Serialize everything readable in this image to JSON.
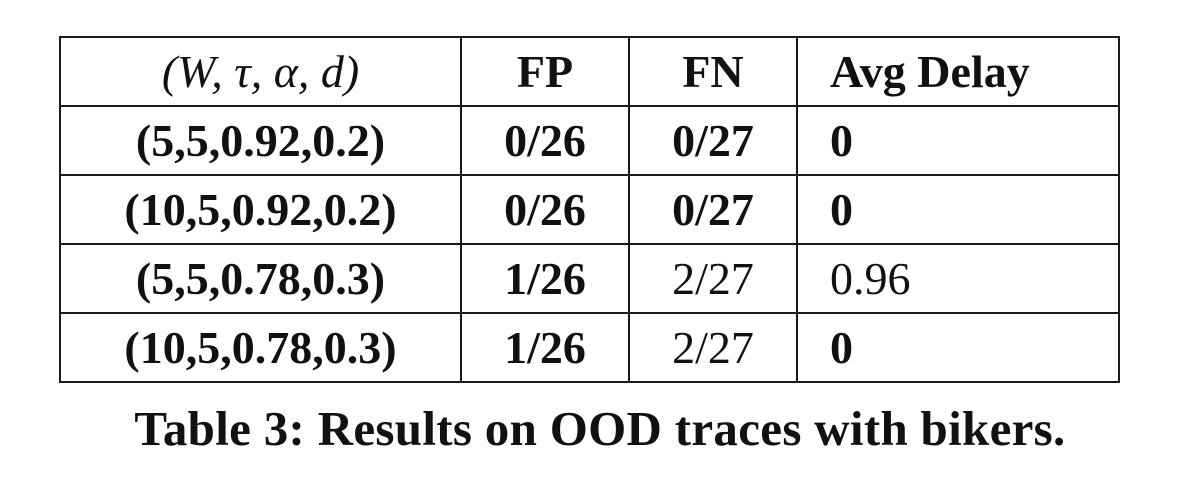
{
  "table": {
    "headers": [
      "(W, τ, α, d)",
      "FP",
      "FN",
      "Avg Delay"
    ],
    "rows": [
      {
        "params": "(5,5,0.92,0.2)",
        "fp": "0/26",
        "fn": "0/27",
        "avg_delay": "0",
        "bold": [
          true,
          true,
          true,
          true
        ]
      },
      {
        "params": "(10,5,0.92,0.2)",
        "fp": "0/26",
        "fn": "0/27",
        "avg_delay": "0",
        "bold": [
          true,
          true,
          true,
          true
        ]
      },
      {
        "params": "(5,5,0.78,0.3)",
        "fp": "1/26",
        "fn": "2/27",
        "avg_delay": "0.96",
        "bold": [
          true,
          true,
          false,
          false
        ]
      },
      {
        "params": "(10,5,0.78,0.3)",
        "fp": "1/26",
        "fn": "2/27",
        "avg_delay": "0",
        "bold": [
          true,
          true,
          false,
          true
        ]
      }
    ]
  },
  "caption": "Table 3: Results on OOD traces with bikers."
}
